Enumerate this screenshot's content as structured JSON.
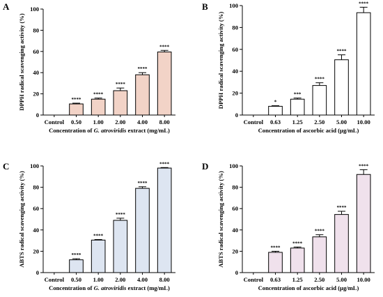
{
  "chart_data": [
    {
      "panel": "A",
      "type": "bar",
      "ylabel": "DPPH radical scavenging activity (%)",
      "xlabel_parts": [
        "Concentration of ",
        "G. atroviridis",
        " extract (mg/mL)"
      ],
      "categories": [
        "Control",
        "0.50",
        "1.00",
        "2.00",
        "4.00",
        "8.00"
      ],
      "values": [
        0,
        10.5,
        15,
        23,
        38,
        59.5
      ],
      "errors": [
        0,
        0.7,
        1.0,
        2.5,
        2.0,
        1.5
      ],
      "significance": [
        "",
        "****",
        "****",
        "****",
        "****",
        "****"
      ],
      "ylim": [
        0,
        100
      ],
      "yticks": [
        "0",
        "20",
        "40",
        "60",
        "80",
        "100"
      ],
      "bar_color": "#f2d3c7"
    },
    {
      "panel": "B",
      "type": "bar",
      "ylabel": "DPPH radical scavenging activity (%)",
      "xlabel_parts": [
        "Concentration of ascorbic acid (µg/mL)",
        "",
        ""
      ],
      "categories": [
        "Control",
        "0.63",
        "1.25",
        "2.50",
        "5.00",
        "10.00"
      ],
      "values": [
        0,
        8,
        14.5,
        27,
        50.5,
        93.5
      ],
      "errors": [
        0,
        0.5,
        1.0,
        2.5,
        4.5,
        5.0
      ],
      "significance": [
        "",
        "*",
        "***",
        "****",
        "****",
        "****"
      ],
      "ylim": [
        0,
        100
      ],
      "yticks": [
        "0",
        "20",
        "40",
        "60",
        "80",
        "100"
      ],
      "bar_color": "#ffffff"
    },
    {
      "panel": "C",
      "type": "bar",
      "ylabel": "ABTS radical scavenging activity (%)",
      "xlabel_parts": [
        "Concentration of ",
        "G. atroviridis",
        " extract (mg/mL)"
      ],
      "categories": [
        "Control",
        "0.50",
        "1.00",
        "2.00",
        "4.00",
        "8.00"
      ],
      "values": [
        0,
        12,
        30.5,
        49,
        79,
        98
      ],
      "errors": [
        0,
        1.0,
        0.5,
        2.0,
        1.5,
        0.5
      ],
      "significance": [
        "",
        "****",
        "****",
        "****",
        "****",
        "****"
      ],
      "ylim": [
        0,
        100
      ],
      "yticks": [
        "0",
        "20",
        "40",
        "60",
        "80",
        "100"
      ],
      "bar_color": "#dde5f1"
    },
    {
      "panel": "D",
      "type": "bar",
      "ylabel": "ABTS radical scavenging activity (%)",
      "xlabel_parts": [
        "Concentration of ascorbic acid (µg/mL)",
        "",
        ""
      ],
      "categories": [
        "Control",
        "0.63",
        "1.25",
        "2.50",
        "5.00",
        "10.00"
      ],
      "values": [
        0,
        19,
        23,
        33.5,
        54.5,
        92
      ],
      "errors": [
        0,
        1.0,
        1.0,
        2.0,
        3.0,
        4.5
      ],
      "significance": [
        "",
        "****",
        "****",
        "****",
        "****",
        "****"
      ],
      "ylim": [
        0,
        100
      ],
      "yticks": [
        "0",
        "20",
        "40",
        "60",
        "80",
        "100"
      ],
      "bar_color": "#f0e1ec"
    }
  ]
}
